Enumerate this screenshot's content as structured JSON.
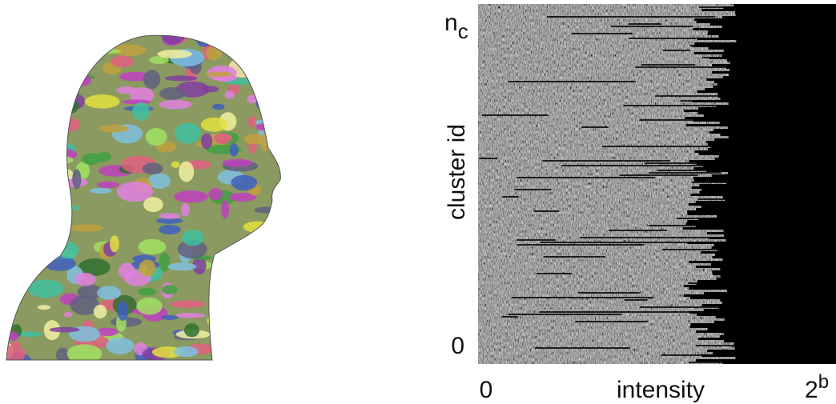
{
  "figure": {
    "y_axis": {
      "label": "cluster id",
      "top": {
        "base": "n",
        "sub": "c"
      },
      "bottom": "0"
    },
    "x_axis": {
      "label": "intensity",
      "left": "0",
      "right": {
        "base": "2",
        "sup": "b"
      }
    }
  }
}
